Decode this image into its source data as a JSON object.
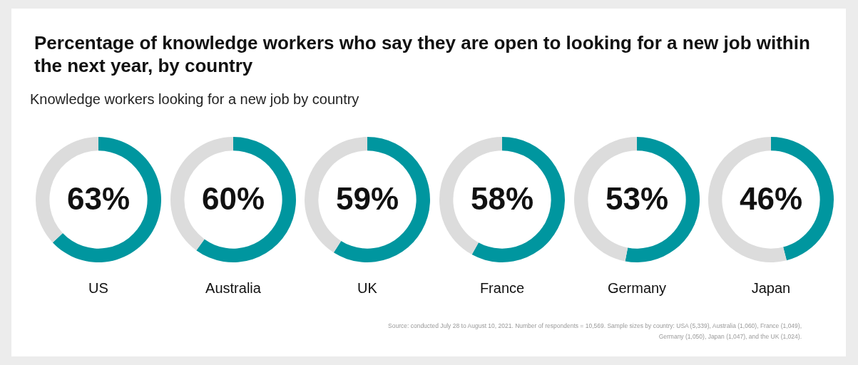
{
  "chart_data": [
    {
      "type": "donut",
      "title": "Percentage of knowledge workers who say they are open to looking for a new job within the next year, by country",
      "subtitle": "Knowledge workers looking for a new job by country",
      "xlabel": "US",
      "categories": [
        null,
        null
      ],
      "values": [
        63,
        37
      ],
      "colors": [
        "#00969f",
        "#dcdcdc"
      ],
      "value_labels": [
        "63%",
        null
      ]
    },
    {
      "type": "donut",
      "xlabel": "Australia",
      "categories": [
        null,
        null
      ],
      "values": [
        60,
        40
      ],
      "colors": [
        "#00969f",
        "#dcdcdc"
      ],
      "value_labels": [
        "60%",
        null
      ]
    },
    {
      "type": "donut",
      "xlabel": "UK",
      "categories": [
        null,
        null
      ],
      "values": [
        59,
        41
      ],
      "colors": [
        "#00969f",
        "#dcdcdc"
      ],
      "value_labels": [
        "59%",
        null
      ]
    },
    {
      "type": "donut",
      "xlabel": "France",
      "categories": [
        null,
        null
      ],
      "values": [
        58,
        42
      ],
      "colors": [
        "#00969f",
        "#dcdcdc"
      ],
      "value_labels": [
        "58%",
        null
      ]
    },
    {
      "type": "donut",
      "xlabel": "Germany",
      "categories": [
        null,
        null
      ],
      "values": [
        53,
        47
      ],
      "colors": [
        "#00969f",
        "#dcdcdc"
      ],
      "value_labels": [
        "53%",
        null
      ]
    },
    {
      "type": "donut",
      "xlabel": "Japan",
      "categories": [
        null,
        null
      ],
      "values": [
        46,
        54
      ],
      "colors": [
        "#00969f",
        "#dcdcdc"
      ],
      "value_labels": [
        "46%",
        null
      ],
      "annotations": [
        "Source: conducted July 28 to August 10, 2021. Number of respondents = 10,569. Sample sizes by country: USA (5,339), Australia (1,060), France (1,049), Germany (1,050), Japan (1,047), and the UK (1,024)."
      ]
    }
  ]
}
